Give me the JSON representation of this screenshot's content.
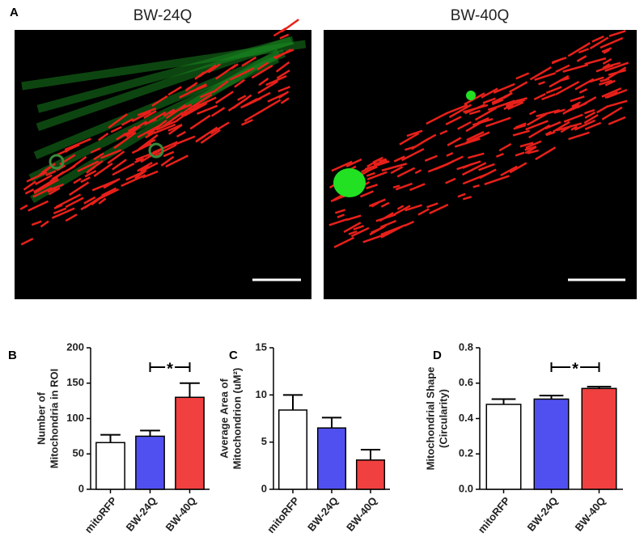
{
  "panel_a": {
    "label": "A",
    "images": [
      {
        "title": "BW-24Q"
      },
      {
        "title": "BW-40Q"
      }
    ]
  },
  "chart_data": [
    {
      "type": "bar",
      "panel": "B",
      "y_label": [
        "Number of",
        "Mitochondria in ROI"
      ],
      "categories": [
        "mitoRFP",
        "BW-24Q",
        "BW-40Q"
      ],
      "values": [
        66,
        75,
        130
      ],
      "errors": [
        11,
        8,
        20
      ],
      "colors": [
        "#ffffff",
        "#5050f0",
        "#f04040"
      ],
      "ylim": [
        0,
        200
      ],
      "yticks": [
        0,
        50,
        100,
        150,
        200
      ],
      "annotations": [
        {
          "text": "*",
          "from": 1,
          "to": 2
        }
      ]
    },
    {
      "type": "bar",
      "panel": "C",
      "y_label": [
        "Average Area of",
        "Mitochondrion (uM²)"
      ],
      "categories": [
        "mitoRFP",
        "BW-24Q",
        "BW-40Q"
      ],
      "values": [
        8.4,
        6.5,
        3.1
      ],
      "errors": [
        1.6,
        1.1,
        1.1
      ],
      "colors": [
        "#ffffff",
        "#5050f0",
        "#f04040"
      ],
      "ylim": [
        0,
        15
      ],
      "yticks": [
        0,
        5,
        10,
        15
      ],
      "annotations": []
    },
    {
      "type": "bar",
      "panel": "D",
      "y_label": [
        "Mitochondrial Shape",
        "(Circularity)"
      ],
      "categories": [
        "mitoRFP",
        "BW-24Q",
        "BW-40Q"
      ],
      "values": [
        0.48,
        0.51,
        0.57
      ],
      "errors": [
        0.03,
        0.02,
        0.01
      ],
      "colors": [
        "#ffffff",
        "#5050f0",
        "#f04040"
      ],
      "ylim": [
        0,
        0.8
      ],
      "yticks": [
        {
          "value": 0,
          "label": "0.0"
        },
        0.2,
        0.4,
        0.6,
        0.8
      ],
      "annotations": [
        {
          "text": "*",
          "from": 1,
          "to": 2
        }
      ]
    }
  ]
}
